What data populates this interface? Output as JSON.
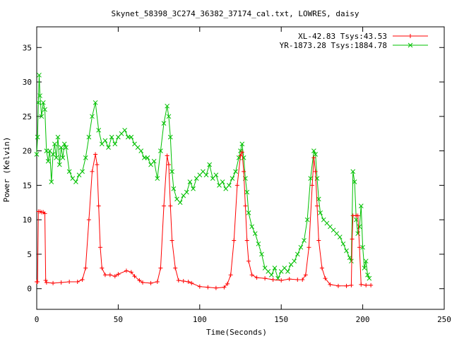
{
  "chart_data": {
    "type": "line",
    "title": "Skynet_58398_3C274_36382_37174_cal.txt, LOWRES, daisy",
    "xlabel": "Time(Seconds)",
    "ylabel": "Power (Kelvin)",
    "xlim": [
      0,
      250
    ],
    "ylim": [
      -3,
      38
    ],
    "xticks": [
      0,
      50,
      100,
      150,
      200,
      250
    ],
    "yticks": [
      0,
      5,
      10,
      15,
      20,
      25,
      30,
      35
    ],
    "grid": false,
    "legend_position": "top-right",
    "series": [
      {
        "name": "XL-42.83 Tsys:43.53",
        "color": "#ff0000",
        "marker": "plus",
        "points": [
          [
            0,
            1
          ],
          [
            0.5,
            1
          ],
          [
            1,
            11.2
          ],
          [
            2,
            11.2
          ],
          [
            3,
            11.1
          ],
          [
            4,
            11.1
          ],
          [
            5,
            10.9
          ],
          [
            5.5,
            1.2
          ],
          [
            6,
            0.9
          ],
          [
            10,
            0.8
          ],
          [
            15,
            0.9
          ],
          [
            20,
            1
          ],
          [
            25,
            1
          ],
          [
            28,
            1.3
          ],
          [
            30,
            3
          ],
          [
            32,
            10
          ],
          [
            34,
            17
          ],
          [
            36,
            19.5
          ],
          [
            37,
            18
          ],
          [
            38,
            12
          ],
          [
            39,
            6
          ],
          [
            40,
            3
          ],
          [
            42,
            2
          ],
          [
            45,
            2
          ],
          [
            48,
            1.8
          ],
          [
            50,
            2.1
          ],
          [
            55,
            2.6
          ],
          [
            58,
            2.4
          ],
          [
            60,
            1.8
          ],
          [
            63,
            1.2
          ],
          [
            65,
            0.9
          ],
          [
            70,
            0.8
          ],
          [
            74,
            1
          ],
          [
            76,
            3
          ],
          [
            78,
            12
          ],
          [
            80,
            19.3
          ],
          [
            81,
            18
          ],
          [
            82,
            12
          ],
          [
            83,
            7
          ],
          [
            85,
            3
          ],
          [
            87,
            1.2
          ],
          [
            90,
            1.1
          ],
          [
            93,
            1
          ],
          [
            95,
            0.8
          ],
          [
            100,
            0.3
          ],
          [
            105,
            0.2
          ],
          [
            110,
            0.1
          ],
          [
            115,
            0.2
          ],
          [
            117,
            0.7
          ],
          [
            119,
            2
          ],
          [
            121,
            7
          ],
          [
            123,
            15
          ],
          [
            125,
            19.3
          ],
          [
            126,
            19.8
          ],
          [
            127,
            17
          ],
          [
            128,
            12
          ],
          [
            129,
            7
          ],
          [
            130,
            4
          ],
          [
            132,
            2
          ],
          [
            135,
            1.6
          ],
          [
            140,
            1.5
          ],
          [
            145,
            1.3
          ],
          [
            150,
            1.2
          ],
          [
            155,
            1.4
          ],
          [
            160,
            1.3
          ],
          [
            163,
            1.3
          ],
          [
            165,
            2
          ],
          [
            167,
            6
          ],
          [
            169,
            15
          ],
          [
            170,
            19
          ],
          [
            171,
            17
          ],
          [
            172,
            12
          ],
          [
            173,
            7
          ],
          [
            175,
            3
          ],
          [
            177,
            1.5
          ],
          [
            180,
            0.6
          ],
          [
            185,
            0.4
          ],
          [
            190,
            0.4
          ],
          [
            193,
            0.5
          ],
          [
            193.5,
            7.2
          ],
          [
            194,
            10.6
          ],
          [
            196,
            10.6
          ],
          [
            197,
            10.6
          ],
          [
            198,
            6
          ],
          [
            199,
            0.6
          ],
          [
            202,
            0.5
          ],
          [
            205,
            0.5
          ]
        ]
      },
      {
        "name": "YR-1873.28 Tsys:1884.78",
        "color": "#00c000",
        "marker": "cross",
        "points": [
          [
            0,
            19.5
          ],
          [
            0.5,
            22
          ],
          [
            1,
            27
          ],
          [
            1.5,
            31
          ],
          [
            2,
            28
          ],
          [
            3,
            25
          ],
          [
            4,
            27
          ],
          [
            5,
            26
          ],
          [
            6,
            20
          ],
          [
            7,
            18.5
          ],
          [
            8,
            20
          ],
          [
            9,
            15.5
          ],
          [
            10,
            19.5
          ],
          [
            11,
            21
          ],
          [
            12,
            19
          ],
          [
            13,
            22
          ],
          [
            14,
            18
          ],
          [
            15,
            20.5
          ],
          [
            16,
            19
          ],
          [
            17,
            21
          ],
          [
            18,
            20.5
          ],
          [
            20,
            17
          ],
          [
            22,
            16
          ],
          [
            24,
            15.5
          ],
          [
            26,
            16.5
          ],
          [
            28,
            17
          ],
          [
            30,
            19
          ],
          [
            32,
            22
          ],
          [
            34,
            25
          ],
          [
            36,
            27
          ],
          [
            38,
            23
          ],
          [
            40,
            21
          ],
          [
            42,
            21.5
          ],
          [
            44,
            20.5
          ],
          [
            46,
            22
          ],
          [
            48,
            21
          ],
          [
            50,
            22
          ],
          [
            52,
            22.5
          ],
          [
            54,
            23
          ],
          [
            56,
            22
          ],
          [
            58,
            22
          ],
          [
            60,
            21
          ],
          [
            62,
            20.5
          ],
          [
            64,
            20
          ],
          [
            66,
            19
          ],
          [
            68,
            19
          ],
          [
            70,
            18
          ],
          [
            72,
            18.5
          ],
          [
            74,
            16
          ],
          [
            76,
            20
          ],
          [
            78,
            24
          ],
          [
            80,
            26.5
          ],
          [
            81,
            25
          ],
          [
            82,
            22
          ],
          [
            83,
            17
          ],
          [
            84,
            14.5
          ],
          [
            86,
            13
          ],
          [
            88,
            12.5
          ],
          [
            90,
            13.5
          ],
          [
            92,
            14
          ],
          [
            94,
            15.5
          ],
          [
            96,
            14.5
          ],
          [
            98,
            16
          ],
          [
            100,
            16.5
          ],
          [
            102,
            17
          ],
          [
            104,
            16.5
          ],
          [
            106,
            18
          ],
          [
            108,
            16
          ],
          [
            110,
            16.5
          ],
          [
            112,
            15
          ],
          [
            114,
            15.5
          ],
          [
            116,
            14.5
          ],
          [
            118,
            15
          ],
          [
            120,
            16
          ],
          [
            122,
            17
          ],
          [
            124,
            19
          ],
          [
            125,
            20
          ],
          [
            126,
            21
          ],
          [
            127,
            19
          ],
          [
            128,
            16
          ],
          [
            129,
            14
          ],
          [
            130,
            11
          ],
          [
            132,
            9
          ],
          [
            134,
            8
          ],
          [
            136,
            6.5
          ],
          [
            138,
            5
          ],
          [
            140,
            3
          ],
          [
            142,
            2.5
          ],
          [
            144,
            2
          ],
          [
            146,
            3
          ],
          [
            148,
            1.5
          ],
          [
            150,
            2.5
          ],
          [
            152,
            3
          ],
          [
            154,
            2.5
          ],
          [
            156,
            3.5
          ],
          [
            158,
            4
          ],
          [
            160,
            5
          ],
          [
            162,
            6
          ],
          [
            164,
            7
          ],
          [
            166,
            10
          ],
          [
            168,
            16
          ],
          [
            170,
            20
          ],
          [
            171,
            19.5
          ],
          [
            172,
            16
          ],
          [
            173,
            13
          ],
          [
            174,
            11
          ],
          [
            176,
            10
          ],
          [
            178,
            9.5
          ],
          [
            180,
            9
          ],
          [
            182,
            8.5
          ],
          [
            184,
            8
          ],
          [
            186,
            7.5
          ],
          [
            188,
            6.5
          ],
          [
            190,
            5.5
          ],
          [
            192,
            4.5
          ],
          [
            193,
            4
          ],
          [
            194,
            17
          ],
          [
            195,
            15.5
          ],
          [
            196,
            10
          ],
          [
            197,
            8
          ],
          [
            198,
            9
          ],
          [
            199,
            12
          ],
          [
            200,
            6
          ],
          [
            201,
            3
          ],
          [
            202,
            4
          ],
          [
            203,
            2
          ],
          [
            204,
            1.5
          ]
        ]
      }
    ]
  }
}
